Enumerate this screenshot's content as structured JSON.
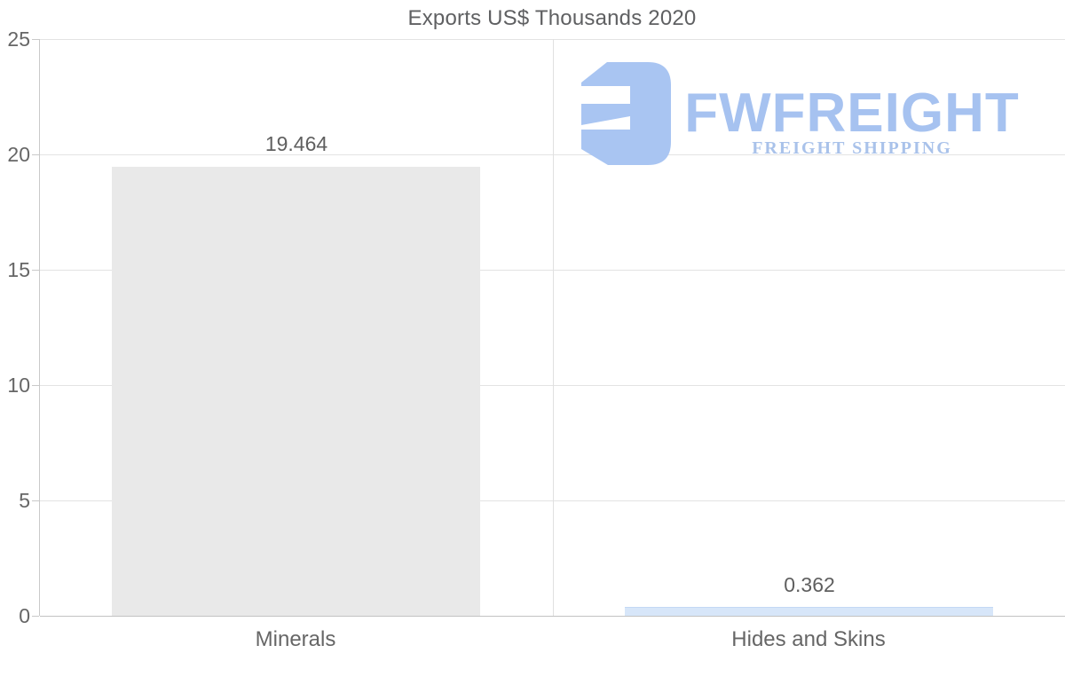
{
  "chart_data": {
    "type": "bar",
    "title": "Exports US$ Thousands 2020",
    "categories": [
      "Minerals",
      "Hides and Skins"
    ],
    "values": [
      19.464,
      0.362
    ],
    "value_labels": [
      "19.464",
      "0.362"
    ],
    "y_ticks": [
      0,
      5,
      10,
      15,
      20,
      25
    ],
    "y_tick_labels": [
      "0",
      "5",
      "10",
      "15",
      "20",
      "25"
    ],
    "ylim": [
      0,
      25
    ],
    "xlabel": "",
    "ylabel": "",
    "legend": "none",
    "grid": "horizontal-gridlines-with-category-divider",
    "bar_colors": [
      "#e9e9e9",
      "#d7e6f9"
    ],
    "bar_top_borders": [
      "",
      "#c4d8f4"
    ]
  },
  "watermark": {
    "brand": "FWFREIGHT",
    "tagline": "FREIGHT SHIPPING",
    "icon": "fwfreight-f-mark-icon",
    "icon_color": "#a9c5f2",
    "brand_color": "#a6c2f0",
    "tagline_color": "#a9c2ea"
  },
  "colors": {
    "title_text": "#5f6062",
    "axis_text": "#666666",
    "value_text": "#5f5f5f",
    "gridline": "#e3e3e3",
    "baseline": "#c2c2c2",
    "axis_line": "#c9c9c9"
  }
}
